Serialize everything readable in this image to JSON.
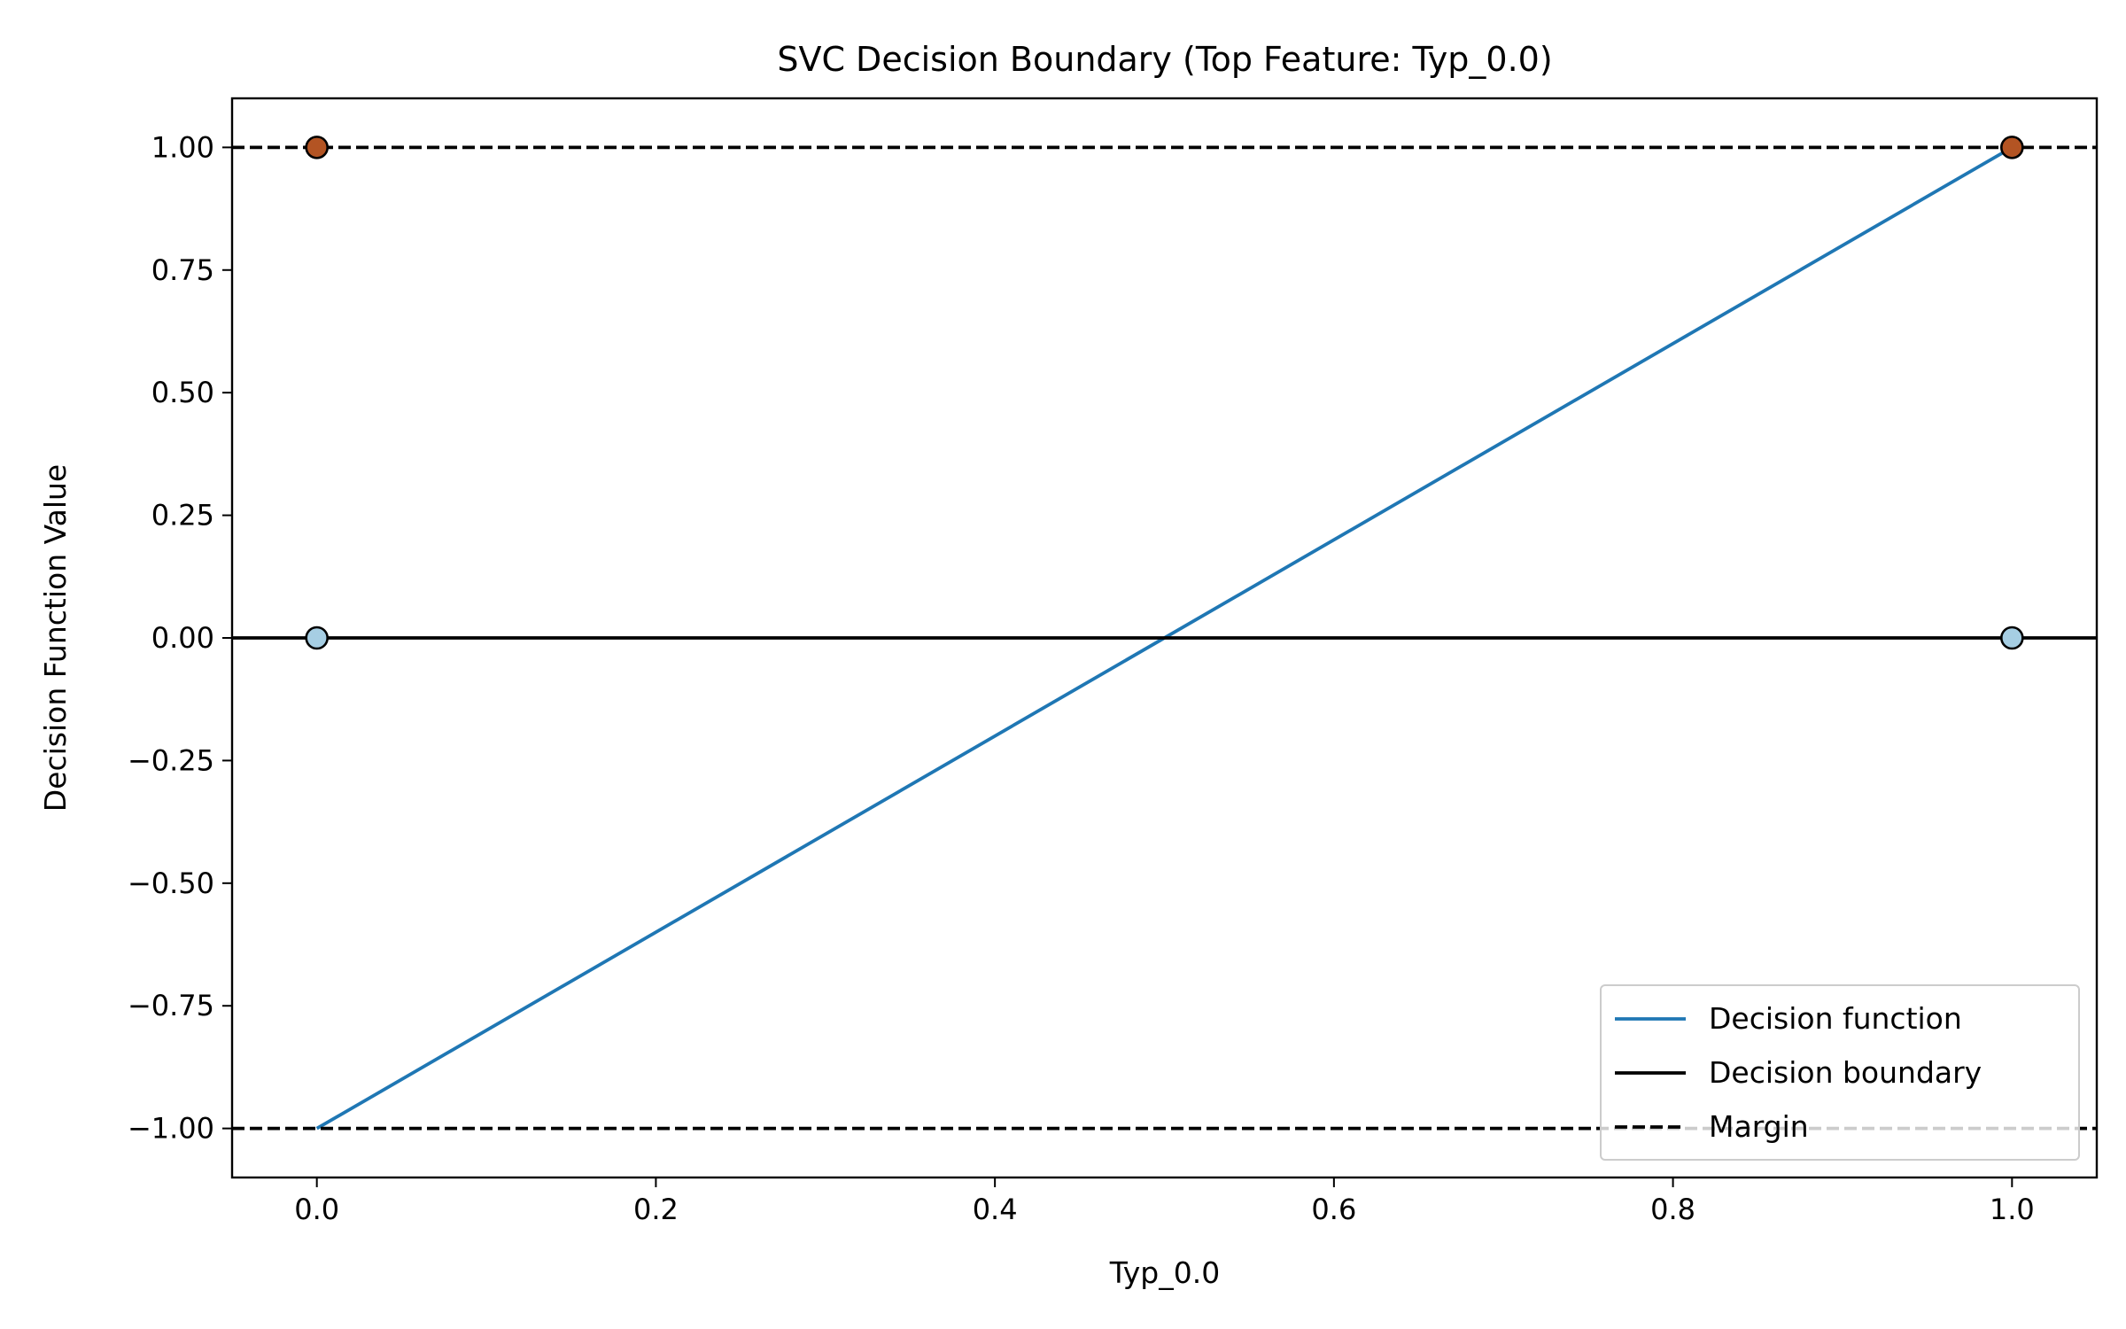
{
  "chart_data": {
    "type": "line",
    "title": "SVC Decision Boundary (Top Feature: Typ_0.0)",
    "xlabel": "Typ_0.0",
    "ylabel": "Decision Function Value",
    "xlim": [
      -0.05,
      1.05
    ],
    "ylim": [
      -1.1,
      1.1
    ],
    "xticks": [
      0.0,
      0.2,
      0.4,
      0.6,
      0.8,
      1.0
    ],
    "xtick_labels": [
      "0.0",
      "0.2",
      "0.4",
      "0.6",
      "0.8",
      "1.0"
    ],
    "yticks": [
      1.0,
      0.75,
      0.5,
      0.25,
      0.0,
      -0.25,
      -0.5,
      -0.75,
      -1.0
    ],
    "ytick_labels": [
      "1.00",
      "0.75",
      "0.50",
      "0.25",
      "0.00",
      "−0.25",
      "−0.50",
      "−0.75",
      "−1.00"
    ],
    "grid": false,
    "legend_position": "lower-right",
    "series": [
      {
        "name": "Decision function",
        "kind": "line",
        "color": "#1f77b4",
        "x": [
          0.0,
          1.0
        ],
        "y": [
          -1.0,
          1.0
        ]
      },
      {
        "name": "Decision boundary",
        "kind": "hline",
        "color": "#000000",
        "y": 0.0
      },
      {
        "name": "Margin",
        "kind": "hline-dashed",
        "color": "#000000",
        "y_values": [
          1.0,
          -1.0
        ]
      }
    ],
    "points": [
      {
        "x": 0.0,
        "y": 1.0,
        "color": "#b35423"
      },
      {
        "x": 1.0,
        "y": 1.0,
        "color": "#b35423"
      },
      {
        "x": 0.0,
        "y": 0.0,
        "color": "#a6cee3"
      },
      {
        "x": 1.0,
        "y": 0.0,
        "color": "#a6cee3"
      }
    ]
  }
}
